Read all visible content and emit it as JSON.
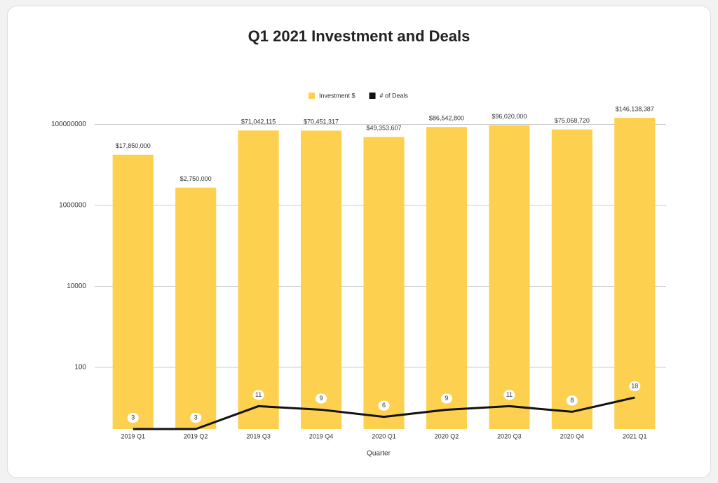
{
  "chart_data": {
    "type": "bar-line",
    "title": "Q1 2021 Investment and Deals",
    "x_label": "Quarter",
    "categories": [
      "2019 Q1",
      "2019 Q2",
      "2019 Q3",
      "2019 Q4",
      "2020 Q1",
      "2020 Q2",
      "2020 Q3",
      "2020 Q4",
      "2021 Q1"
    ],
    "series": [
      {
        "name": "Investment $",
        "type": "bar",
        "color": "#fdd14f",
        "values": [
          17850000,
          2750000,
          71042115,
          70451317,
          49353607,
          86542800,
          96020000,
          75068720,
          146138387
        ],
        "value_labels": [
          "$17,850,000",
          "$2,750,000",
          "$71,042,115",
          "$70,451,317",
          "$49,353,607",
          "$86,542,800",
          "$96,020,000",
          "$75,068,720",
          "$146,138,387"
        ]
      },
      {
        "name": "# of Deals",
        "type": "line",
        "color": "#111111",
        "values": [
          3,
          3,
          11,
          9,
          6,
          9,
          11,
          8,
          18
        ]
      }
    ],
    "y_scale": "log",
    "ylim": [
      3,
      300000000
    ],
    "yticks": [
      100,
      10000,
      1000000,
      100000000
    ],
    "grid": true,
    "legend": "top"
  }
}
